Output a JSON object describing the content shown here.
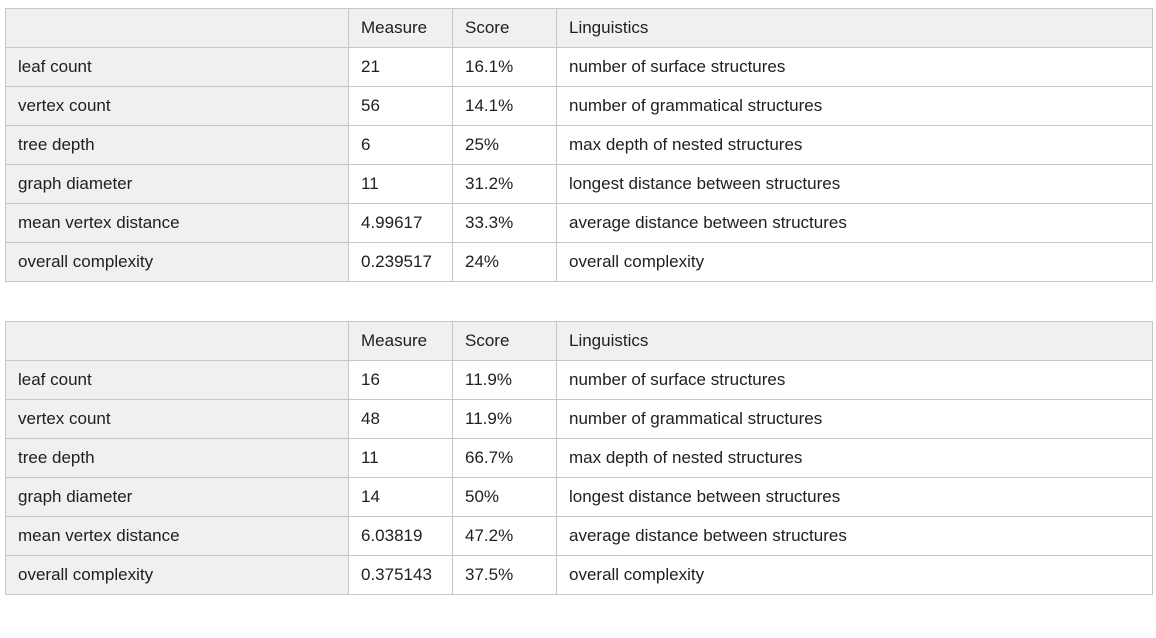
{
  "columns": [
    "",
    "Measure",
    "Score",
    "Linguistics"
  ],
  "tables": [
    {
      "name": "complexity-table-1",
      "rows": [
        {
          "metric": "leaf count",
          "measure": "21",
          "score": "16.1%",
          "linguistics": "number of surface structures"
        },
        {
          "metric": "vertex count",
          "measure": "56",
          "score": "14.1%",
          "linguistics": "number of grammatical structures"
        },
        {
          "metric": "tree depth",
          "measure": "6",
          "score": "25%",
          "linguistics": "max depth of nested structures"
        },
        {
          "metric": "graph diameter",
          "measure": "11",
          "score": "31.2%",
          "linguistics": "longest distance between structures"
        },
        {
          "metric": "mean vertex distance",
          "measure": "4.99617",
          "score": "33.3%",
          "linguistics": "average distance between structures"
        },
        {
          "metric": "overall complexity",
          "measure": "0.239517",
          "score": "24%",
          "linguistics": "overall complexity"
        }
      ]
    },
    {
      "name": "complexity-table-2",
      "rows": [
        {
          "metric": "leaf count",
          "measure": "16",
          "score": "11.9%",
          "linguistics": "number of surface structures"
        },
        {
          "metric": "vertex count",
          "measure": "48",
          "score": "11.9%",
          "linguistics": "number of grammatical structures"
        },
        {
          "metric": "tree depth",
          "measure": "11",
          "score": "66.7%",
          "linguistics": "max depth of nested structures"
        },
        {
          "metric": "graph diameter",
          "measure": "14",
          "score": "50%",
          "linguistics": "longest distance between structures"
        },
        {
          "metric": "mean vertex distance",
          "measure": "6.03819",
          "score": "47.2%",
          "linguistics": "average distance between structures"
        },
        {
          "metric": "overall complexity",
          "measure": "0.375143",
          "score": "37.5%",
          "linguistics": "overall complexity"
        }
      ]
    }
  ],
  "colors": {
    "header_bg": "#f0f0f0",
    "row_header_bg": "#f0f0f0",
    "cell_bg": "#ffffff",
    "border": "#c6c6c6",
    "text": "#202020",
    "page_bg": "#ffffff"
  }
}
